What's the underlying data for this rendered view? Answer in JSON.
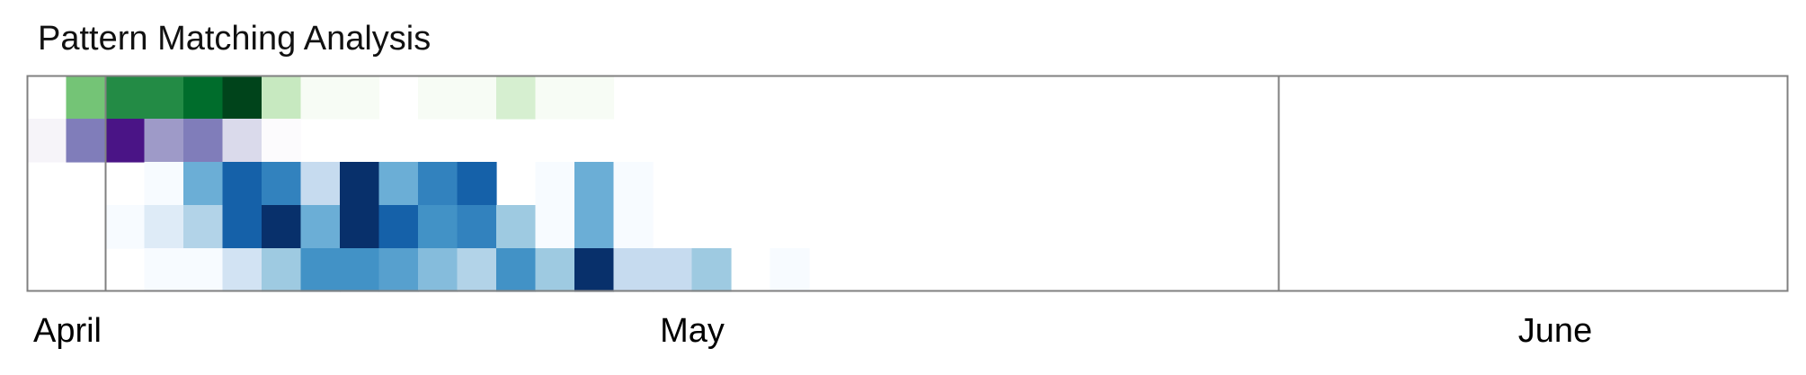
{
  "chart_data": {
    "type": "heatmap",
    "title": "Pattern Matching Analysis",
    "x_axis": {
      "type": "date",
      "start": "2024-04-01",
      "end": "2024-06-30",
      "tick_labels": [
        "April",
        "May",
        "June"
      ],
      "month_dividers": [
        "2024-04-03",
        "2024-05-03"
      ]
    },
    "rows": [
      {
        "palette": "green",
        "colors": [
          "#f7fcf5",
          "#e5f5e0",
          "#c7e9c0",
          "#a1d99b",
          "#74c476",
          "#41ab5d",
          "#238b45",
          "#006d2c",
          "#00441b"
        ],
        "cells": [
          {
            "date": "2024-04-02",
            "level": 5
          },
          {
            "date": "2024-04-03",
            "level": 7
          },
          {
            "date": "2024-04-04",
            "level": 7
          },
          {
            "date": "2024-04-05",
            "level": 8
          },
          {
            "date": "2024-04-06",
            "level": 9
          },
          {
            "date": "2024-04-07",
            "level": 3
          },
          {
            "date": "2024-04-08",
            "level": 1
          },
          {
            "date": "2024-04-09",
            "level": 0.5
          },
          {
            "date": "2024-04-11",
            "level": 1
          },
          {
            "date": "2024-04-12",
            "level": 0.5
          },
          {
            "date": "2024-04-13",
            "level": 2.5
          },
          {
            "date": "2024-04-14",
            "level": 1
          },
          {
            "date": "2024-04-15",
            "level": 0.5
          },
          {
            "date": "2024-06-11",
            "level": 0.5
          }
        ]
      },
      {
        "palette": "purple",
        "colors": [
          "#fcfbfd",
          "#efedf5",
          "#dadaeb",
          "#bcbddc",
          "#9e9ac8",
          "#807dba",
          "#6a51a3",
          "#54278f",
          "#3f007d"
        ],
        "cells": [
          {
            "date": "2024-04-01",
            "level": 1.5
          },
          {
            "date": "2024-04-02",
            "level": 6
          },
          {
            "date": "2024-04-03",
            "level": 8.5
          },
          {
            "date": "2024-04-04",
            "level": 5
          },
          {
            "date": "2024-04-05",
            "level": 6
          },
          {
            "date": "2024-04-06",
            "level": 3
          },
          {
            "date": "2024-04-07",
            "level": 1
          }
        ]
      },
      {
        "palette": "blue",
        "colors": [
          "#f7fbff",
          "#deebf7",
          "#c6dbef",
          "#9ecae1",
          "#6baed6",
          "#4292c6",
          "#2171b5",
          "#08519c",
          "#08306b"
        ],
        "cells": [
          {
            "date": "2024-04-04",
            "level": 1
          },
          {
            "date": "2024-04-05",
            "level": 5
          },
          {
            "date": "2024-04-06",
            "level": 7.5
          },
          {
            "date": "2024-04-07",
            "level": 6.5
          },
          {
            "date": "2024-04-08",
            "level": 3
          },
          {
            "date": "2024-04-09",
            "level": 9
          },
          {
            "date": "2024-04-10",
            "level": 5
          },
          {
            "date": "2024-04-11",
            "level": 6.5
          },
          {
            "date": "2024-04-12",
            "level": 7.5
          },
          {
            "date": "2024-04-14",
            "level": 1
          },
          {
            "date": "2024-04-15",
            "level": 5
          },
          {
            "date": "2024-04-16",
            "level": 1
          }
        ]
      },
      {
        "palette": "blue",
        "colors": [
          "#f7fbff",
          "#deebf7",
          "#c6dbef",
          "#9ecae1",
          "#6baed6",
          "#4292c6",
          "#2171b5",
          "#08519c",
          "#08306b"
        ],
        "cells": [
          {
            "date": "2024-04-03",
            "level": 0.5
          },
          {
            "date": "2024-04-04",
            "level": 2
          },
          {
            "date": "2024-04-05",
            "level": 3.5
          },
          {
            "date": "2024-04-06",
            "level": 7.5
          },
          {
            "date": "2024-04-07",
            "level": 9
          },
          {
            "date": "2024-04-08",
            "level": 5
          },
          {
            "date": "2024-04-09",
            "level": 9
          },
          {
            "date": "2024-04-10",
            "level": 7.5
          },
          {
            "date": "2024-04-11",
            "level": 6
          },
          {
            "date": "2024-04-12",
            "level": 6.5
          },
          {
            "date": "2024-04-13",
            "level": 4
          },
          {
            "date": "2024-04-14",
            "level": 1
          },
          {
            "date": "2024-04-15",
            "level": 5
          },
          {
            "date": "2024-04-16",
            "level": 0.5
          }
        ]
      },
      {
        "palette": "blue",
        "colors": [
          "#f7fbff",
          "#deebf7",
          "#c6dbef",
          "#9ecae1",
          "#6baed6",
          "#4292c6",
          "#2171b5",
          "#08519c",
          "#08306b"
        ],
        "cells": [
          {
            "date": "2024-04-04",
            "level": 0.3
          },
          {
            "date": "2024-04-05",
            "level": 1
          },
          {
            "date": "2024-04-06",
            "level": 2.5
          },
          {
            "date": "2024-04-07",
            "level": 4
          },
          {
            "date": "2024-04-08",
            "level": 6
          },
          {
            "date": "2024-04-09",
            "level": 6
          },
          {
            "date": "2024-04-10",
            "level": 5.5
          },
          {
            "date": "2024-04-11",
            "level": 4.5
          },
          {
            "date": "2024-04-12",
            "level": 3.5
          },
          {
            "date": "2024-04-13",
            "level": 6
          },
          {
            "date": "2024-04-14",
            "level": 4
          },
          {
            "date": "2024-04-15",
            "level": 9
          },
          {
            "date": "2024-04-16",
            "level": 3
          },
          {
            "date": "2024-04-17",
            "level": 3
          },
          {
            "date": "2024-04-18",
            "level": 4
          },
          {
            "date": "2024-04-20",
            "level": 0.3
          }
        ]
      }
    ],
    "grid": false,
    "legend": "none",
    "frame_color": "#808080"
  }
}
